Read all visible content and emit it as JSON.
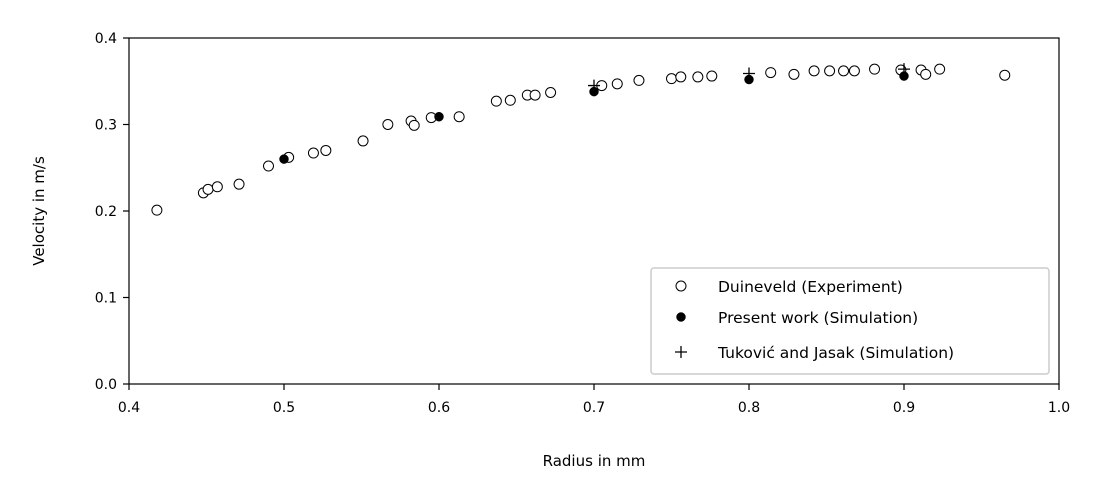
{
  "chart_data": {
    "type": "scatter",
    "title": "",
    "xlabel": "Radius in mm",
    "ylabel": "Velocity in m/s",
    "xlim": [
      0.4,
      1.0
    ],
    "ylim": [
      0.0,
      0.4
    ],
    "xticks": [
      "0.4",
      "0.5",
      "0.6",
      "0.7",
      "0.8",
      "0.9",
      "1.0"
    ],
    "yticks": [
      "0.0",
      "0.1",
      "0.2",
      "0.3",
      "0.4"
    ],
    "grid": false,
    "legend_position": "lower-right",
    "series": [
      {
        "name": "Duineveld (Experiment)",
        "marker": "open-circle",
        "points": [
          [
            0.418,
            0.201
          ],
          [
            0.448,
            0.221
          ],
          [
            0.451,
            0.225
          ],
          [
            0.457,
            0.228
          ],
          [
            0.471,
            0.231
          ],
          [
            0.49,
            0.252
          ],
          [
            0.503,
            0.262
          ],
          [
            0.519,
            0.267
          ],
          [
            0.527,
            0.27
          ],
          [
            0.551,
            0.281
          ],
          [
            0.567,
            0.3
          ],
          [
            0.582,
            0.304
          ],
          [
            0.584,
            0.299
          ],
          [
            0.595,
            0.308
          ],
          [
            0.613,
            0.309
          ],
          [
            0.637,
            0.327
          ],
          [
            0.646,
            0.328
          ],
          [
            0.657,
            0.334
          ],
          [
            0.662,
            0.334
          ],
          [
            0.672,
            0.337
          ],
          [
            0.705,
            0.345
          ],
          [
            0.715,
            0.347
          ],
          [
            0.729,
            0.351
          ],
          [
            0.75,
            0.353
          ],
          [
            0.756,
            0.355
          ],
          [
            0.767,
            0.355
          ],
          [
            0.776,
            0.356
          ],
          [
            0.814,
            0.36
          ],
          [
            0.829,
            0.358
          ],
          [
            0.842,
            0.362
          ],
          [
            0.852,
            0.362
          ],
          [
            0.861,
            0.362
          ],
          [
            0.868,
            0.362
          ],
          [
            0.881,
            0.364
          ],
          [
            0.898,
            0.363
          ],
          [
            0.911,
            0.363
          ],
          [
            0.914,
            0.358
          ],
          [
            0.923,
            0.364
          ],
          [
            0.965,
            0.357
          ]
        ]
      },
      {
        "name": "Present work (Simulation)",
        "marker": "filled-circle",
        "points": [
          [
            0.5,
            0.26
          ],
          [
            0.6,
            0.309
          ],
          [
            0.7,
            0.338
          ],
          [
            0.8,
            0.352
          ],
          [
            0.9,
            0.356
          ]
        ]
      },
      {
        "name": "Tuković and Jasak (Simulation)",
        "marker": "plus",
        "points": [
          [
            0.7,
            0.345
          ],
          [
            0.8,
            0.359
          ],
          [
            0.9,
            0.364
          ]
        ]
      }
    ]
  }
}
